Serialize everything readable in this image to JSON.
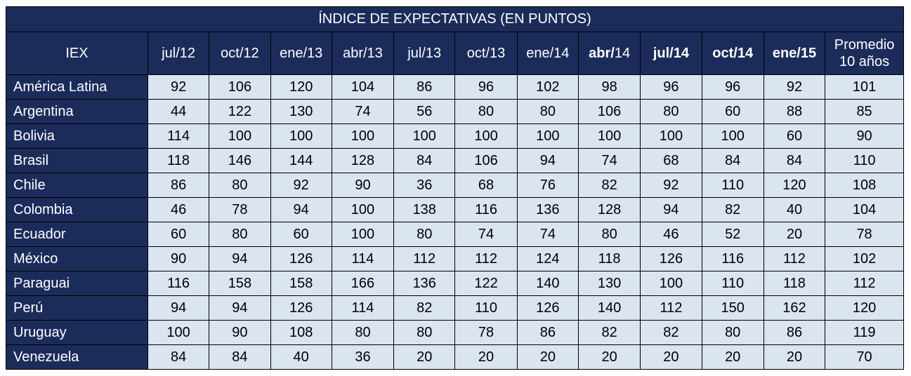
{
  "table": {
    "title": "ÍNDICE DE EXPECTATIVAS (EN PUNTOS)",
    "corner_label": "IEX",
    "columns": [
      {
        "label": "jul/12",
        "bold": false
      },
      {
        "label": "oct/12",
        "bold": false
      },
      {
        "label": "ene/13",
        "bold": false
      },
      {
        "label": "abr/13",
        "bold": false
      },
      {
        "label": "jul/13",
        "bold": false
      },
      {
        "label": "oct/13",
        "bold": false
      },
      {
        "label": "ene/14",
        "bold": false
      },
      {
        "label_bold": "abr/",
        "label_rest": "14",
        "bold": "partial"
      },
      {
        "label": "jul/14",
        "bold": true
      },
      {
        "label": "oct/14",
        "bold": true
      },
      {
        "label": "ene/15",
        "bold": true
      }
    ],
    "avg_header": {
      "line1": "Promedio",
      "line2": "10 años"
    },
    "rows": [
      {
        "label": "América Latina",
        "values": [
          "92",
          "106",
          "120",
          "104",
          "86",
          "96",
          "102",
          "98",
          "96",
          "96",
          "92",
          "101"
        ]
      },
      {
        "label": "Argentina",
        "values": [
          "44",
          "122",
          "130",
          "74",
          "56",
          "80",
          "80",
          "106",
          "80",
          "60",
          "88",
          "85"
        ]
      },
      {
        "label": "Bolivia",
        "values": [
          "114",
          "100",
          "100",
          "100",
          "100",
          "100",
          "100",
          "100",
          "100",
          "100",
          "60",
          "90"
        ]
      },
      {
        "label": "Brasil",
        "values": [
          "118",
          "146",
          "144",
          "128",
          "84",
          "106",
          "94",
          "74",
          "68",
          "84",
          "84",
          "110"
        ]
      },
      {
        "label": "Chile",
        "values": [
          "86",
          "80",
          "92",
          "90",
          "36",
          "68",
          "76",
          "82",
          "92",
          "110",
          "120",
          "108"
        ]
      },
      {
        "label": "Colombia",
        "values": [
          "46",
          "78",
          "94",
          "100",
          "138",
          "116",
          "136",
          "128",
          "94",
          "82",
          "40",
          "104"
        ]
      },
      {
        "label": "Ecuador",
        "values": [
          "60",
          "80",
          "60",
          "100",
          "80",
          "74",
          "74",
          "80",
          "46",
          "52",
          "20",
          "78"
        ]
      },
      {
        "label": "México",
        "values": [
          "90",
          "94",
          "126",
          "114",
          "112",
          "112",
          "124",
          "118",
          "126",
          "116",
          "112",
          "102"
        ]
      },
      {
        "label": "Paraguai",
        "values": [
          "116",
          "158",
          "158",
          "166",
          "136",
          "122",
          "140",
          "130",
          "100",
          "110",
          "118",
          "112"
        ]
      },
      {
        "label": "Perú",
        "values": [
          "94",
          "94",
          "126",
          "114",
          "82",
          "110",
          "126",
          "140",
          "112",
          "150",
          "162",
          "120"
        ]
      },
      {
        "label": "Uruguay",
        "values": [
          "100",
          "90",
          "108",
          "80",
          "80",
          "78",
          "86",
          "82",
          "82",
          "80",
          "86",
          "119"
        ]
      },
      {
        "label": "Venezuela",
        "values": [
          "84",
          "84",
          "40",
          "36",
          "20",
          "20",
          "20",
          "20",
          "20",
          "20",
          "20",
          "70"
        ]
      }
    ],
    "colors": {
      "header_bg": "#1c2c5a",
      "cell_bg": "#dbe4f1",
      "header_text": "#ffffff",
      "cell_text": "#000000"
    }
  }
}
